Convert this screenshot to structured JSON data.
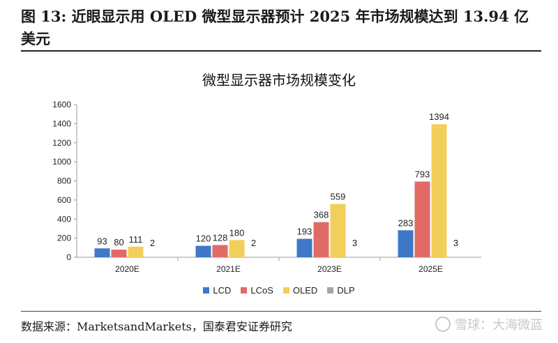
{
  "figure": {
    "header": "图 13: 近眼显示用 OLED 微型显示器预计 2025 年市场规模达到 13.94 亿美元",
    "source": "数据来源：MarketsandMarkets，国泰君安证券研究",
    "watermark": "雪球：大海微蓝"
  },
  "chart_data": {
    "type": "bar",
    "title": "微型显示器市场规模变化",
    "categories": [
      "2020E",
      "2021E",
      "2023E",
      "2025E"
    ],
    "series": [
      {
        "name": "LCD",
        "color": "#3F78C8",
        "values": [
          93,
          120,
          193,
          283
        ]
      },
      {
        "name": "LCoS",
        "color": "#E16A66",
        "values": [
          80,
          128,
          368,
          793
        ]
      },
      {
        "name": "OLED",
        "color": "#F2CF5B",
        "values": [
          111,
          180,
          559,
          1394
        ]
      },
      {
        "name": "DLP",
        "color": "#A6A6A6",
        "values": [
          2,
          2,
          3,
          3
        ]
      }
    ],
    "ylim": [
      0,
      1600
    ],
    "yticks": [
      0,
      200,
      400,
      600,
      800,
      1000,
      1200,
      1400,
      1600
    ],
    "grid": false,
    "legend_position": "bottom"
  }
}
